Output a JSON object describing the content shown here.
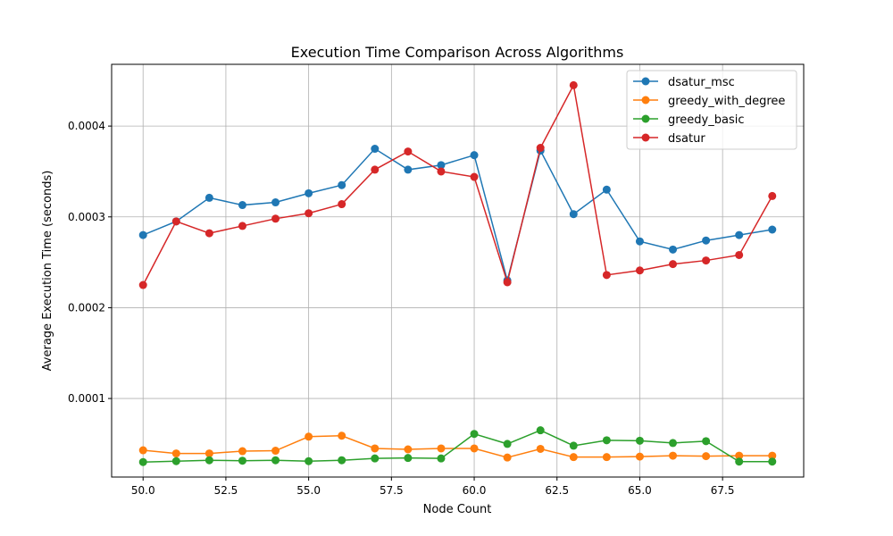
{
  "chart_data": {
    "type": "line",
    "title": "Execution Time Comparison Across Algorithms",
    "xlabel": "Node Count",
    "ylabel": "Average Execution Time (seconds)",
    "xlim": [
      49.05,
      69.95
    ],
    "ylim": [
      1.35e-05,
      0.000468
    ],
    "xticks": [
      50.0,
      52.5,
      55.0,
      57.5,
      60.0,
      62.5,
      65.0,
      67.5
    ],
    "xtick_labels": [
      "50.0",
      "52.5",
      "55.0",
      "57.5",
      "60.0",
      "62.5",
      "65.0",
      "67.5"
    ],
    "yticks": [
      0.0001,
      0.0002,
      0.0003,
      0.0004
    ],
    "ytick_labels": [
      "0.0001",
      "0.0002",
      "0.0003",
      "0.0004"
    ],
    "grid": true,
    "legend_position": "top-right",
    "x": [
      50,
      51,
      52,
      53,
      54,
      55,
      56,
      57,
      58,
      59,
      60,
      61,
      62,
      63,
      64,
      65,
      66,
      67,
      68,
      69
    ],
    "series": [
      {
        "name": "dsatur_msc",
        "color": "#1f77b4",
        "values": [
          0.00028,
          0.000295,
          0.000321,
          0.000313,
          0.000316,
          0.000326,
          0.000335,
          0.000375,
          0.000352,
          0.000357,
          0.000368,
          0.00023,
          0.000373,
          0.000303,
          0.00033,
          0.000273,
          0.000264,
          0.000274,
          0.00028,
          0.000286
        ]
      },
      {
        "name": "greedy_with_degree",
        "color": "#ff7f0e",
        "values": [
          4.3e-05,
          3.95e-05,
          3.95e-05,
          4.2e-05,
          4.25e-05,
          5.8e-05,
          5.9e-05,
          4.5e-05,
          4.4e-05,
          4.5e-05,
          4.5e-05,
          3.5e-05,
          4.45e-05,
          3.55e-05,
          3.55e-05,
          3.6e-05,
          3.7e-05,
          3.65e-05,
          3.7e-05,
          3.7e-05
        ]
      },
      {
        "name": "greedy_basic",
        "color": "#2ca02c",
        "values": [
          3e-05,
          3.1e-05,
          3.2e-05,
          3.15e-05,
          3.2e-05,
          3.1e-05,
          3.2e-05,
          3.4e-05,
          3.45e-05,
          3.4e-05,
          6.1e-05,
          5e-05,
          6.5e-05,
          4.8e-05,
          5.4e-05,
          5.35e-05,
          5.1e-05,
          5.3e-05,
          3.05e-05,
          3.05e-05
        ]
      },
      {
        "name": "dsatur",
        "color": "#d62728",
        "values": [
          0.000225,
          0.000295,
          0.000282,
          0.00029,
          0.000298,
          0.000304,
          0.000314,
          0.000352,
          0.000372,
          0.00035,
          0.000344,
          0.000228,
          0.000376,
          0.000445,
          0.000236,
          0.000241,
          0.000248,
          0.000252,
          0.000258,
          0.000323
        ]
      }
    ]
  }
}
